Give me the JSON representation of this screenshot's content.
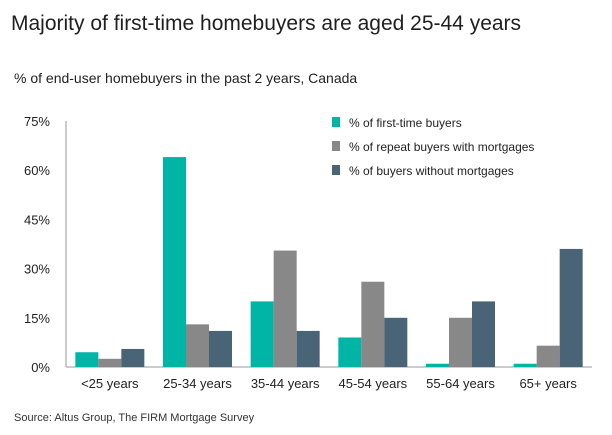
{
  "chart_data": {
    "type": "bar",
    "title": "Majority of first-time homebuyers are aged 25-44 years",
    "subtitle": "% of end-user homebuyers in the past 2 years, Canada",
    "source": "Source: Altus Group, The FIRM Mortgage Survey",
    "categories": [
      "<25 years",
      "25-34 years",
      "35-44 years",
      "45-54 years",
      "55-64 years",
      "65+ years"
    ],
    "series": [
      {
        "name": "% of first-time buyers",
        "color": "#00b5a6",
        "values": [
          4.5,
          64,
          20,
          9,
          1,
          1
        ]
      },
      {
        "name": "% of repeat buyers with mortgages",
        "color": "#888888",
        "values": [
          2.5,
          13,
          35.5,
          26,
          15,
          6.5
        ]
      },
      {
        "name": "% of buyers without mortgages",
        "color": "#4a6477",
        "values": [
          5.5,
          11,
          11,
          15,
          20,
          36
        ]
      }
    ],
    "y_ticks": [
      "0%",
      "15%",
      "30%",
      "45%",
      "60%",
      "75%"
    ],
    "ylim": [
      0,
      75
    ],
    "legend_placement": "top-right",
    "grid": false
  }
}
